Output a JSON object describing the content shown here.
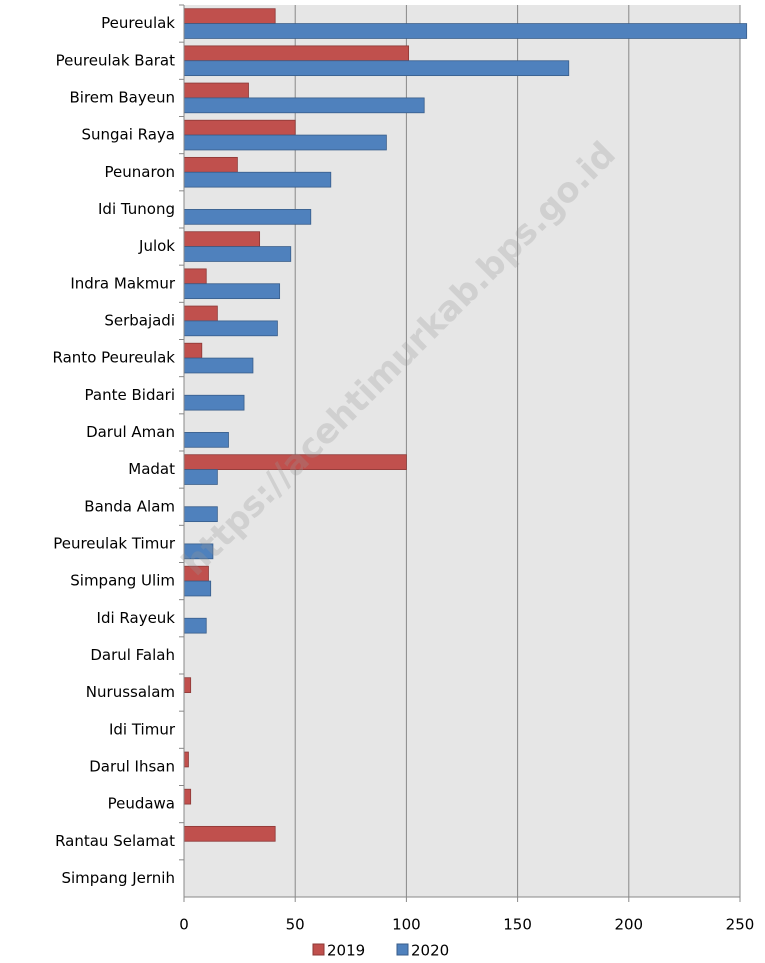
{
  "chart_data": {
    "type": "barh",
    "watermark": "https://acehtimurkab.bps.go.id",
    "categories": [
      "Peureulak",
      "Peureulak Barat",
      "Birem Bayeun",
      "Sungai Raya",
      "Peunaron",
      "Idi Tunong",
      "Julok",
      "Indra Makmur",
      "Serbajadi",
      "Ranto Peureulak",
      "Pante Bidari",
      "Darul Aman",
      "Madat",
      "Banda Alam",
      "Peureulak Timur",
      "Simpang Ulim",
      "Idi Rayeuk",
      "Darul Falah",
      "Nurussalam",
      "Idi Timur",
      "Darul Ihsan",
      "Peudawa",
      "Rantau Selamat",
      "Simpang Jernih"
    ],
    "series": [
      {
        "name": "2019",
        "color": "#c0504d",
        "values": [
          41,
          101,
          29,
          50,
          24,
          0,
          34,
          10,
          15,
          8,
          0,
          0,
          100,
          0,
          0,
          11,
          0,
          0,
          3,
          0,
          2,
          3,
          41,
          0
        ]
      },
      {
        "name": "2020",
        "color": "#4f81bd",
        "values": [
          253,
          173,
          108,
          91,
          66,
          57,
          48,
          43,
          42,
          31,
          27,
          20,
          15,
          15,
          13,
          12,
          10,
          0,
          0,
          0,
          0,
          0,
          0,
          0
        ]
      }
    ],
    "xlim": [
      0,
      250
    ],
    "xticks": [
      0,
      50,
      100,
      150,
      200,
      250
    ],
    "grid": true,
    "legend": "bottom"
  }
}
